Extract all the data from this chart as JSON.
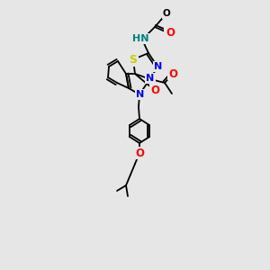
{
  "background_color": "#e6e6e6",
  "bond_color": "#000000",
  "atom_colors": {
    "N": "#0000ee",
    "O": "#ff0000",
    "S": "#cccc00",
    "H": "#008080",
    "C": "#000000"
  },
  "figsize": [
    3.0,
    3.0
  ],
  "dpi": 100
}
